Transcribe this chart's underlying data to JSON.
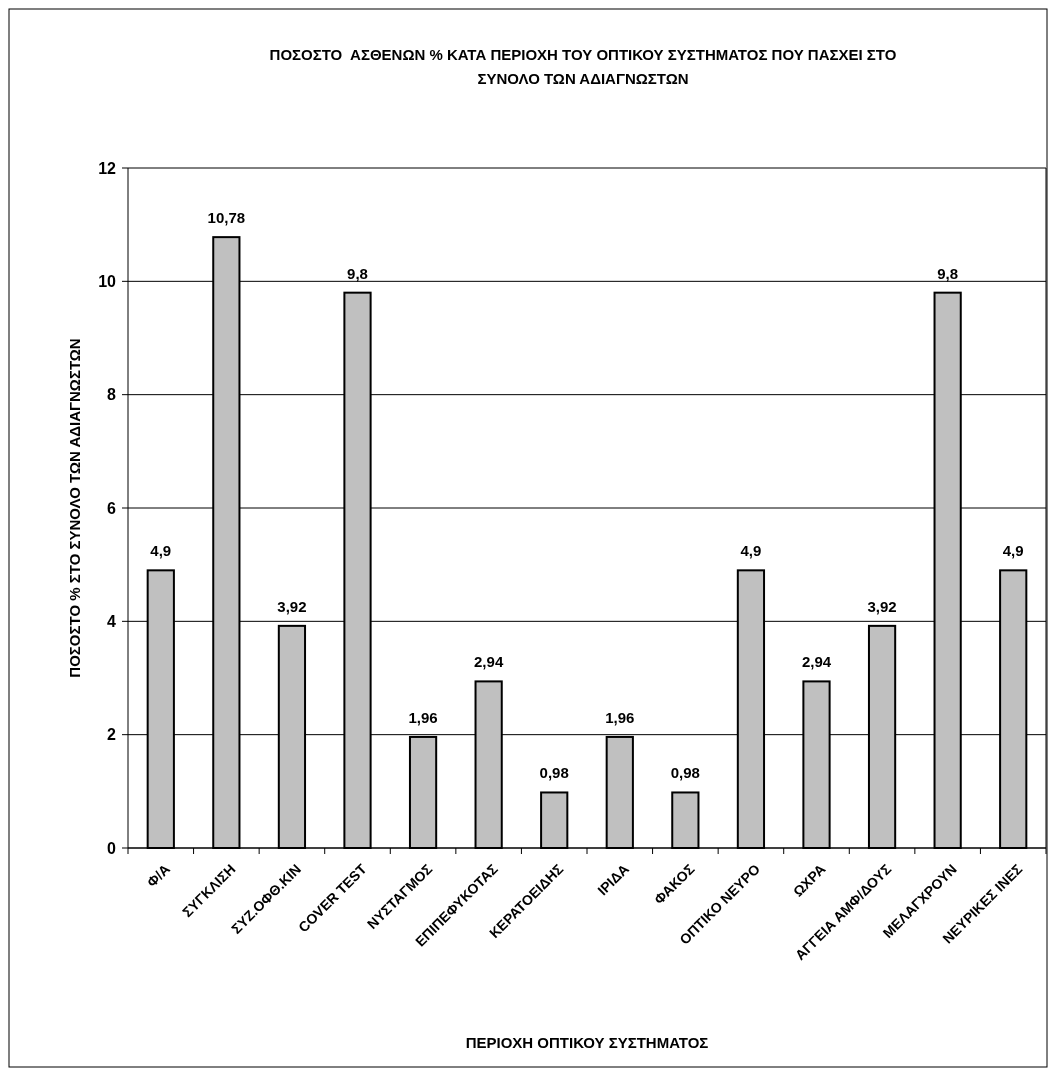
{
  "chart_data": {
    "type": "bar",
    "title": "ΠΟΣΟΣΤΟ  ΑΣΘΕΝΩΝ % ΚΑΤΑ ΠΕΡΙΟΧΗ ΤΟΥ ΟΠΤΙΚΟΥ ΣΥΣΤΗΜΑΤΟΣ ΠΟΥ ΠΑΣΧΕΙ ΣΤΟ ΣΥΝΟΛΟ ΤΩΝ ΑΔΙΑΓΝΩΣΤΩΝ",
    "xlabel": "ΠΕΡΙΟΧΗ ΟΠΤΙΚΟΥ ΣΥΣΤΗΜΑΤΟΣ",
    "ylabel": "ΠΟΣΟΣΤΟ % ΣΤΟ ΣΥΝΟΛΟ ΤΩΝ ΑΔΙΑΓΝΩΣΤΩΝ",
    "categories": [
      "Φ/Α",
      "ΣΥΓΚΛΙΣΗ",
      "ΣΥΖ.ΟΦΘ.ΚΙΝ",
      "COVER TEST",
      "ΝΥΣΤΑΓΜΟΣ",
      "ΕΠΙΠΕΦΥΚΟΤΑΣ",
      "ΚΕΡΑΤΟΕΙΔΗΣ",
      "ΙΡΙΔΑ",
      "ΦΑΚΟΣ",
      "ΟΠΤΙΚΟ ΝΕΥΡΟ",
      "ΩΧΡΑ",
      "ΑΓΓΕΙΑ ΑΜΦ/ΔΟΥΣ",
      "ΜΕΛΑΓΧΡΟΥΝ",
      "ΝΕΥΡΙΚΕΣ ΙΝΕΣ"
    ],
    "values": [
      4.9,
      10.78,
      3.92,
      9.8,
      1.96,
      2.94,
      0.98,
      1.96,
      0.98,
      4.9,
      2.94,
      3.92,
      9.8,
      4.9
    ],
    "value_labels": [
      "4,9",
      "10,78",
      "3,92",
      "9,8",
      "1,96",
      "2,94",
      "0,98",
      "1,96",
      "0,98",
      "4,9",
      "2,94",
      "3,92",
      "9,8",
      "4,9"
    ],
    "color": "#c0c0c0",
    "ylim": [
      0,
      12
    ],
    "yticks": [
      0,
      2,
      4,
      6,
      8,
      10,
      12
    ],
    "grid": "y"
  }
}
